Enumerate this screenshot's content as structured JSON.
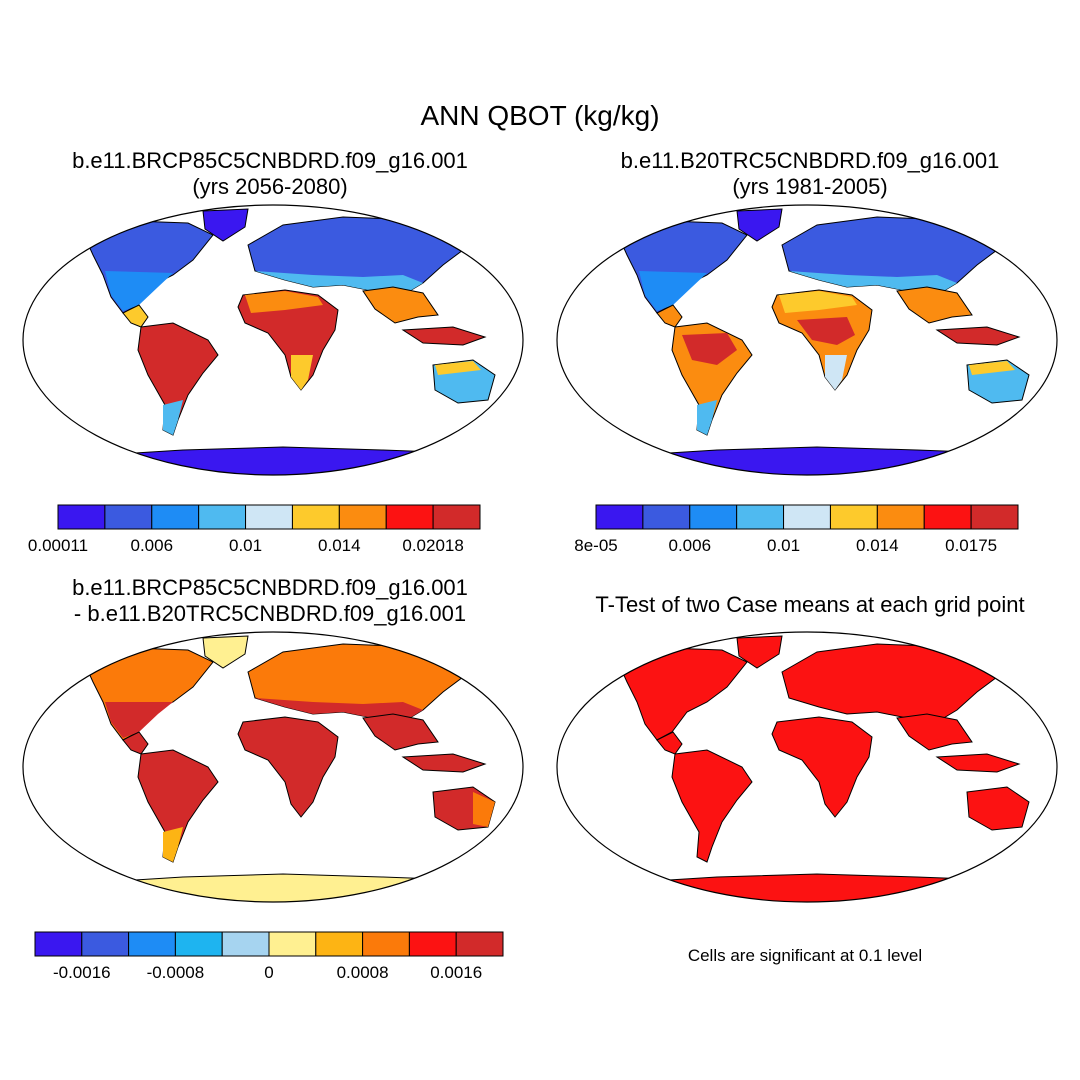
{
  "title": "ANN QBOT (kg/kg)",
  "panels": [
    {
      "id": "case1",
      "title_line1": "b.e11.BRCP85C5CNBDRD.f09_g16.001",
      "title_line2": "(yrs 2056-2080)"
    },
    {
      "id": "case2",
      "title_line1": "b.e11.B20TRC5CNBDRD.f09_g16.001",
      "title_line2": "(yrs 1981-2005)"
    },
    {
      "id": "diff",
      "title_line1": "b.e11.BRCP85C5CNBDRD.f09_g16.001",
      "title_line2": "- b.e11.B20TRC5CNBDRD.f09_g16.001"
    },
    {
      "id": "ttest",
      "title_line1": "T-Test of two Case means at each grid point",
      "title_line2": ""
    }
  ],
  "colorbars": [
    {
      "id": "cb1",
      "colors": [
        "#3a17f0",
        "#3b5ae0",
        "#1e8cf5",
        "#4fbaf0",
        "#cfe6f5",
        "#fdca2c",
        "#fb8c10",
        "#fc1212",
        "#d22a2a"
      ],
      "labels": [
        "0.00011",
        "0.006",
        "0.01",
        "0.014",
        "0.02018"
      ]
    },
    {
      "id": "cb2",
      "colors": [
        "#3a17f0",
        "#3b5ae0",
        "#1e8cf5",
        "#4fbaf0",
        "#cfe6f5",
        "#fdca2c",
        "#fb8c10",
        "#fc1212",
        "#d22a2a"
      ],
      "labels": [
        "8e-05",
        "0.006",
        "0.01",
        "0.014",
        "0.0175"
      ]
    },
    {
      "id": "cb3",
      "colors": [
        "#3a17f0",
        "#3b5ae0",
        "#1e8cf5",
        "#1eb4f0",
        "#a6d4f0",
        "#fff091",
        "#fdb414",
        "#fb7a0a",
        "#fc1212",
        "#d22a2a"
      ],
      "labels": [
        "-0.0016",
        "-0.0008",
        "0",
        "0.0008",
        "0.0016"
      ]
    }
  ],
  "note": "Cells are significant at 0.1 level"
}
